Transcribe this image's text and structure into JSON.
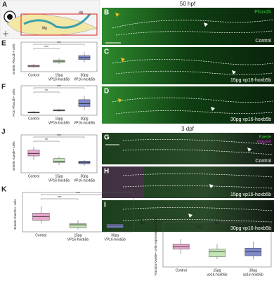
{
  "schematic": {
    "letter": "A",
    "labels": [
      "Hb",
      "Mg"
    ]
  },
  "stages": [
    "50 hpf",
    "3 dpf"
  ],
  "images": [
    {
      "letter": "B",
      "marker": "Phox2b",
      "condition": "Control"
    },
    {
      "letter": "C",
      "condition": "15pg vp16-hoxb5b"
    },
    {
      "letter": "D",
      "condition": "30pg vp16-hoxb5b"
    },
    {
      "letter": "G",
      "markers": [
        "Kaede",
        "Elav3/4"
      ],
      "condition": "Control"
    },
    {
      "letter": "H",
      "condition": "15pg vp16-hoxb5b"
    },
    {
      "letter": "I",
      "condition": "30pg vp16-hoxb5b"
    }
  ],
  "chart_data": [
    {
      "type": "box",
      "letter": "E",
      "ylabel": "Enteric Phox2b+ cells",
      "categories": [
        [
          "Control"
        ],
        [
          "15pg",
          "VP16-hoxb5b"
        ],
        [
          "30pg",
          "VP16-hoxb5b"
        ]
      ],
      "colors": [
        "#eaa9cf",
        "#c4e6b6",
        "#7f89cc"
      ],
      "boxes": [
        {
          "min": 40,
          "q1": 50,
          "median": 58,
          "q3": 65,
          "max": 80
        },
        {
          "min": 80,
          "q1": 95,
          "median": 108,
          "q3": 118,
          "max": 135
        },
        {
          "min": 95,
          "q1": 125,
          "median": 145,
          "q3": 165,
          "max": 200
        }
      ],
      "ylim": [
        0,
        260
      ],
      "significance": [
        "***",
        "***"
      ]
    },
    {
      "type": "box",
      "letter": "F",
      "ylabel": "POD Phox2b+ cells",
      "categories": [
        [
          "Control"
        ],
        [
          "15pg",
          "VP16-hoxb5b"
        ],
        [
          "30pg",
          "VP16-hoxb5b"
        ]
      ],
      "colors": [
        "#eaa9cf",
        "#c4e6b6",
        "#7f89cc"
      ],
      "boxes": [
        {
          "min": 8,
          "q1": 12,
          "median": 14,
          "q3": 17,
          "max": 22
        },
        {
          "min": 18,
          "q1": 22,
          "median": 25,
          "q3": 28,
          "max": 33
        },
        {
          "min": 25,
          "q1": 45,
          "median": 60,
          "q3": 80,
          "max": 100
        }
      ],
      "ylim": [
        0,
        130
      ],
      "significance": [
        "**",
        "***"
      ]
    },
    {
      "type": "box",
      "letter": "J",
      "ylabel": "Enteric Kaede+ cells",
      "categories": [
        [
          "Control"
        ],
        [
          "15pg",
          "VP16-hoxb5b"
        ],
        [
          "30pg",
          "VP16-hoxb5b"
        ]
      ],
      "colors": [
        "#eaa9cf",
        "#c4e6b6",
        "#7f89cc"
      ],
      "boxes": [
        {
          "min": 100,
          "q1": 130,
          "median": 150,
          "q3": 175,
          "max": 200
        },
        {
          "min": 60,
          "q1": 80,
          "median": 90,
          "q3": 110,
          "max": 125
        },
        {
          "min": 55,
          "q1": 70,
          "median": 80,
          "q3": 90,
          "max": 100
        }
      ],
      "ylim": [
        0,
        260
      ],
      "significance": [
        "**",
        "***"
      ]
    },
    {
      "type": "box",
      "letter": "K",
      "ylabel": "Enteric Elav3/4+ cells",
      "categories": [
        [
          "Control"
        ],
        [
          "15pg",
          "VP16-hoxb5b"
        ],
        [
          "30pg",
          "VP16-hoxb5b"
        ]
      ],
      "colors": [
        "#eaa9cf",
        "#c4e6b6",
        "#7f89cc"
      ],
      "boxes": [
        {
          "min": 35,
          "q1": 50,
          "median": 65,
          "q3": 80,
          "max": 110
        },
        {
          "min": 10,
          "q1": 18,
          "median": 30,
          "q3": 35,
          "max": 50
        },
        {
          "min": 10,
          "q1": 18,
          "median": 25,
          "q3": 32,
          "max": 45
        }
      ],
      "ylim": [
        0,
        150
      ],
      "significance": [
        "***",
        "***"
      ]
    },
    {
      "type": "box",
      "letter": "L",
      "ylabel": "Fraction Kaede+ cells expressing Elav3/4",
      "categories": [
        [
          "Control"
        ],
        [
          "15pg",
          "vp16-hoxb5b"
        ],
        [
          "30pg",
          "vp16-hoxb5b"
        ]
      ],
      "colors": [
        "#eaa9cf",
        "#c4e6b6",
        "#7f89cc"
      ],
      "boxes": [
        {
          "min": 0.25,
          "q1": 0.35,
          "median": 0.4,
          "q3": 0.45,
          "max": 0.55
        },
        {
          "min": 0.15,
          "q1": 0.2,
          "median": 0.3,
          "q3": 0.35,
          "max": 0.45
        },
        {
          "min": 0.15,
          "q1": 0.22,
          "median": 0.3,
          "q3": 0.37,
          "max": 0.5
        }
      ],
      "ylim": [
        0,
        0.8
      ],
      "significance": [
        "NS",
        "NS"
      ]
    }
  ]
}
